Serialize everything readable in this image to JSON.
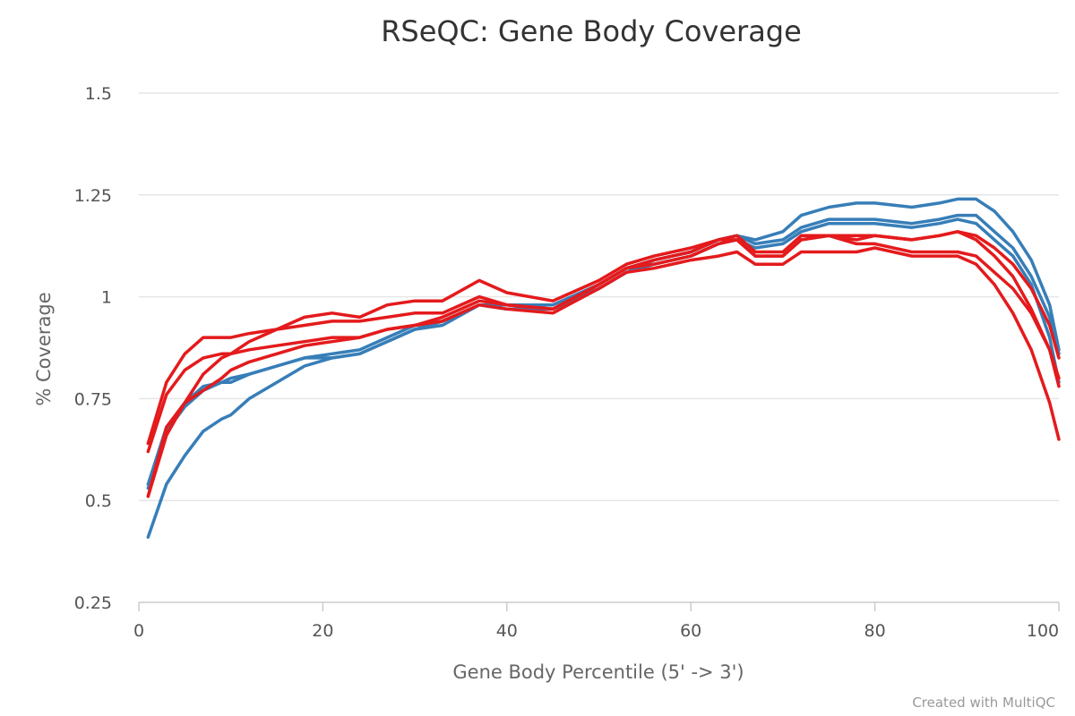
{
  "chart_data": {
    "type": "line",
    "title": "RSeQC: Gene Body Coverage",
    "xlabel": "Gene Body Percentile (5' -> 3')",
    "ylabel": "% Coverage",
    "xlim": [
      0,
      100
    ],
    "ylim": [
      0.25,
      1.5
    ],
    "xticks": [
      0,
      20,
      40,
      60,
      80,
      100
    ],
    "yticks": [
      0.25,
      0.5,
      0.75,
      1,
      1.25,
      1.5
    ],
    "ytick_labels": [
      "0.25",
      "0.5",
      "0.75",
      "1",
      "1.25",
      "1.5"
    ],
    "grid": true,
    "legend": "none",
    "colors": {
      "blue": "#377eb8",
      "red": "#e41a1c"
    },
    "series": [
      {
        "color": "#377eb8",
        "x": [
          1,
          3,
          5,
          7,
          9,
          10,
          12,
          15,
          18,
          21,
          24,
          27,
          30,
          33,
          37,
          40,
          45,
          50,
          53,
          56,
          60,
          63,
          65,
          67,
          70,
          72,
          75,
          78,
          80,
          84,
          87,
          89,
          91,
          93,
          95,
          97,
          99,
          100
        ],
        "values": [
          0.41,
          0.54,
          0.61,
          0.67,
          0.7,
          0.71,
          0.75,
          0.79,
          0.83,
          0.85,
          0.86,
          0.89,
          0.92,
          0.94,
          0.98,
          0.97,
          0.97,
          1.02,
          1.06,
          1.09,
          1.11,
          1.14,
          1.15,
          1.14,
          1.16,
          1.2,
          1.22,
          1.23,
          1.23,
          1.22,
          1.23,
          1.24,
          1.24,
          1.21,
          1.16,
          1.09,
          0.98,
          0.87
        ]
      },
      {
        "color": "#377eb8",
        "x": [
          1,
          3,
          5,
          7,
          9,
          10,
          12,
          15,
          18,
          21,
          24,
          27,
          30,
          33,
          37,
          40,
          45,
          50,
          53,
          56,
          60,
          63,
          65,
          67,
          70,
          72,
          75,
          78,
          80,
          84,
          87,
          89,
          91,
          93,
          95,
          97,
          99,
          100
        ],
        "values": [
          0.54,
          0.68,
          0.74,
          0.78,
          0.79,
          0.8,
          0.81,
          0.83,
          0.85,
          0.86,
          0.87,
          0.9,
          0.93,
          0.94,
          0.98,
          0.98,
          0.98,
          1.03,
          1.07,
          1.09,
          1.11,
          1.14,
          1.15,
          1.13,
          1.14,
          1.17,
          1.19,
          1.19,
          1.19,
          1.18,
          1.19,
          1.2,
          1.2,
          1.16,
          1.12,
          1.05,
          0.95,
          0.86
        ]
      },
      {
        "color": "#377eb8",
        "x": [
          1,
          3,
          5,
          7,
          9,
          10,
          12,
          15,
          18,
          21,
          24,
          27,
          30,
          33,
          37,
          40,
          45,
          50,
          53,
          56,
          60,
          63,
          65,
          67,
          70,
          72,
          75,
          78,
          80,
          84,
          87,
          89,
          91,
          93,
          95,
          97,
          99,
          100
        ],
        "values": [
          0.53,
          0.67,
          0.73,
          0.77,
          0.79,
          0.79,
          0.81,
          0.83,
          0.85,
          0.85,
          0.86,
          0.89,
          0.92,
          0.93,
          0.98,
          0.97,
          0.97,
          1.02,
          1.06,
          1.08,
          1.1,
          1.13,
          1.14,
          1.12,
          1.13,
          1.16,
          1.18,
          1.18,
          1.18,
          1.17,
          1.18,
          1.19,
          1.18,
          1.14,
          1.1,
          1.03,
          0.9,
          0.79
        ]
      },
      {
        "color": "#e41a1c",
        "x": [
          1,
          3,
          5,
          7,
          9,
          10,
          12,
          15,
          18,
          21,
          24,
          27,
          30,
          33,
          37,
          40,
          45,
          50,
          53,
          56,
          60,
          63,
          65,
          67,
          70,
          72,
          75,
          78,
          80,
          84,
          87,
          89,
          91,
          93,
          95,
          97,
          99,
          100
        ],
        "values": [
          0.64,
          0.79,
          0.86,
          0.9,
          0.9,
          0.9,
          0.91,
          0.92,
          0.95,
          0.96,
          0.95,
          0.98,
          0.99,
          0.99,
          1.04,
          1.01,
          0.99,
          1.04,
          1.08,
          1.1,
          1.12,
          1.14,
          1.15,
          1.11,
          1.11,
          1.15,
          1.15,
          1.14,
          1.15,
          1.14,
          1.15,
          1.16,
          1.15,
          1.12,
          1.08,
          1.02,
          0.93,
          0.85
        ]
      },
      {
        "color": "#e41a1c",
        "x": [
          1,
          3,
          5,
          7,
          9,
          10,
          12,
          15,
          18,
          21,
          24,
          27,
          30,
          33,
          37,
          40,
          45,
          50,
          53,
          56,
          60,
          63,
          65,
          67,
          70,
          72,
          75,
          78,
          80,
          84,
          87,
          89,
          91,
          93,
          95,
          97,
          99,
          100
        ],
        "values": [
          0.62,
          0.76,
          0.82,
          0.85,
          0.86,
          0.86,
          0.87,
          0.88,
          0.89,
          0.9,
          0.9,
          0.92,
          0.93,
          0.95,
          0.99,
          0.98,
          0.97,
          1.03,
          1.07,
          1.09,
          1.11,
          1.14,
          1.14,
          1.1,
          1.1,
          1.14,
          1.15,
          1.13,
          1.13,
          1.11,
          1.11,
          1.11,
          1.1,
          1.06,
          1.02,
          0.96,
          0.87,
          0.8
        ]
      },
      {
        "color": "#e41a1c",
        "x": [
          1,
          3,
          5,
          7,
          9,
          10,
          12,
          15,
          18,
          21,
          24,
          27,
          30,
          33,
          37,
          40,
          45,
          50,
          53,
          56,
          60,
          63,
          65,
          67,
          70,
          72,
          75,
          78,
          80,
          84,
          87,
          89,
          91,
          93,
          95,
          97,
          99,
          100
        ],
        "values": [
          0.51,
          0.66,
          0.74,
          0.81,
          0.85,
          0.86,
          0.89,
          0.92,
          0.93,
          0.94,
          0.94,
          0.95,
          0.96,
          0.96,
          1.0,
          0.98,
          0.97,
          1.03,
          1.07,
          1.08,
          1.1,
          1.13,
          1.14,
          1.1,
          1.1,
          1.14,
          1.15,
          1.15,
          1.15,
          1.14,
          1.15,
          1.16,
          1.14,
          1.1,
          1.05,
          0.97,
          0.87,
          0.78
        ]
      },
      {
        "color": "#e41a1c",
        "x": [
          1,
          3,
          5,
          7,
          9,
          10,
          12,
          15,
          18,
          21,
          24,
          27,
          30,
          33,
          37,
          40,
          45,
          50,
          53,
          56,
          60,
          63,
          65,
          67,
          70,
          72,
          75,
          78,
          80,
          84,
          87,
          89,
          91,
          93,
          95,
          97,
          99,
          100
        ],
        "values": [
          0.51,
          0.68,
          0.74,
          0.77,
          0.8,
          0.82,
          0.84,
          0.86,
          0.88,
          0.89,
          0.9,
          0.92,
          0.93,
          0.94,
          0.98,
          0.97,
          0.96,
          1.02,
          1.06,
          1.07,
          1.09,
          1.1,
          1.11,
          1.08,
          1.08,
          1.11,
          1.11,
          1.11,
          1.12,
          1.1,
          1.1,
          1.1,
          1.08,
          1.03,
          0.96,
          0.87,
          0.74,
          0.65
        ]
      }
    ]
  },
  "credits": "Created with MultiQC"
}
